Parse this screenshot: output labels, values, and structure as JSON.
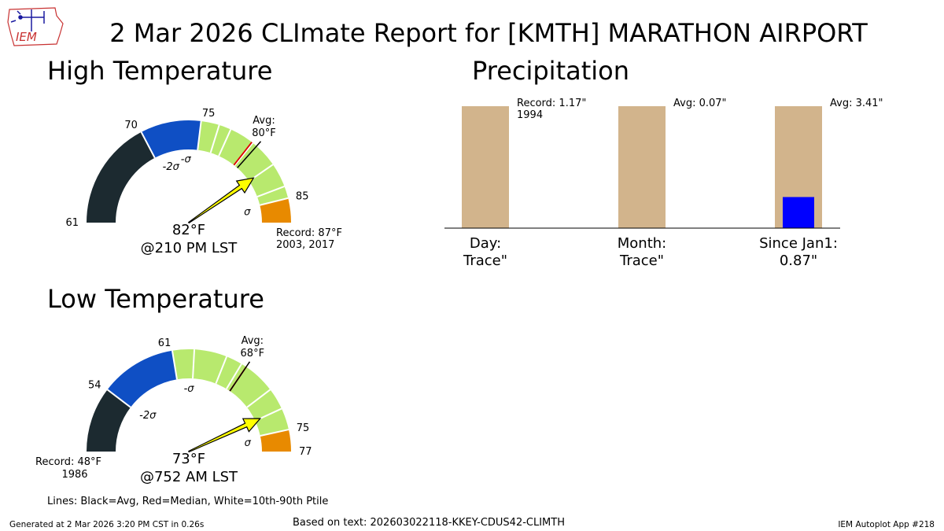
{
  "title": "2 Mar 2026 CLImate Report for [KMTH] MARATHON AIRPORT",
  "logo_text": "IEM",
  "chart_data": [
    {
      "type": "gauge",
      "title": "High Temperature",
      "scale": [
        61,
        87
      ],
      "tick_labels": [
        "61",
        "70",
        "75",
        "85"
      ],
      "tick_values": [
        61,
        70,
        75,
        85
      ],
      "bands": [
        {
          "from": 61,
          "to": 70,
          "color": "#1c2a30"
        },
        {
          "from": 70,
          "to": 75,
          "color": "#0f4fc4"
        },
        {
          "from": 75,
          "to": 85,
          "color": "#b8e96e"
        },
        {
          "from": 85,
          "to": 87,
          "color": "#e88a00"
        }
      ],
      "sigma_labels": [
        {
          "value": 70,
          "text": "-2σ"
        },
        {
          "value": 75,
          "text": "-σ"
        },
        {
          "value": 85,
          "text": "σ"
        }
      ],
      "white_lines": [
        70,
        75,
        76.5,
        77.5,
        79.6,
        82,
        84,
        85
      ],
      "avg": 80,
      "median": 79.5,
      "avg_label": [
        "Avg:",
        "80°F"
      ],
      "observed": 82,
      "observed_label": "82°F",
      "time_label": "@210 PM LST",
      "record_label": [
        "Record: 87°F",
        "2003, 2017"
      ],
      "record_side": "right"
    },
    {
      "type": "gauge",
      "title": "Low Temperature",
      "scale": [
        48,
        77
      ],
      "tick_labels": [
        "54",
        "61",
        "75",
        "77"
      ],
      "tick_values": [
        54,
        61,
        75,
        77
      ],
      "bands": [
        {
          "from": 48,
          "to": 54,
          "color": "#1c2a30"
        },
        {
          "from": 54,
          "to": 61,
          "color": "#0f4fc4"
        },
        {
          "from": 61,
          "to": 75,
          "color": "#b8e96e"
        },
        {
          "from": 75,
          "to": 77,
          "color": "#e88a00"
        }
      ],
      "sigma_labels": [
        {
          "value": 54,
          "text": "-2σ"
        },
        {
          "value": 61,
          "text": "-σ"
        },
        {
          "value": 75,
          "text": "σ"
        }
      ],
      "white_lines": [
        54,
        61,
        63,
        66,
        67.5,
        71,
        73,
        75
      ],
      "avg": 68,
      "median": 68,
      "avg_label": [
        "Avg:",
        "68°F"
      ],
      "observed": 73,
      "observed_label": "73°F",
      "time_label": "@752 AM LST",
      "record_label": [
        "Record: 48°F",
        "1986"
      ],
      "record_side": "left"
    },
    {
      "type": "bar",
      "title": "Precipitation",
      "categories": [
        "Day:",
        "Month:",
        "Since Jan1:"
      ],
      "value_labels": [
        "Trace\"",
        "Trace\"",
        "0.87\""
      ],
      "reference_labels": [
        [
          "Record: 1.17\"",
          "1994"
        ],
        [
          "Avg: 0.07\""
        ],
        [
          "Avg: 3.41\""
        ]
      ],
      "reference_fraction": [
        1.0,
        1.0,
        1.0
      ],
      "observed_fraction": [
        0.0,
        0.0,
        0.255
      ],
      "reference_color": "#d2b48c",
      "observed_color": "#0000ff"
    }
  ],
  "legend_note": "Lines: Black=Avg, Red=Median, White=10th-90th Ptile",
  "footer": {
    "generated": "Generated at 2 Mar 2026 3:20 PM CST in 0.26s",
    "based_on": "Based on text: 202603022118-KKEY-CDUS42-CLIMTH",
    "app": "IEM Autoplot App #218"
  }
}
